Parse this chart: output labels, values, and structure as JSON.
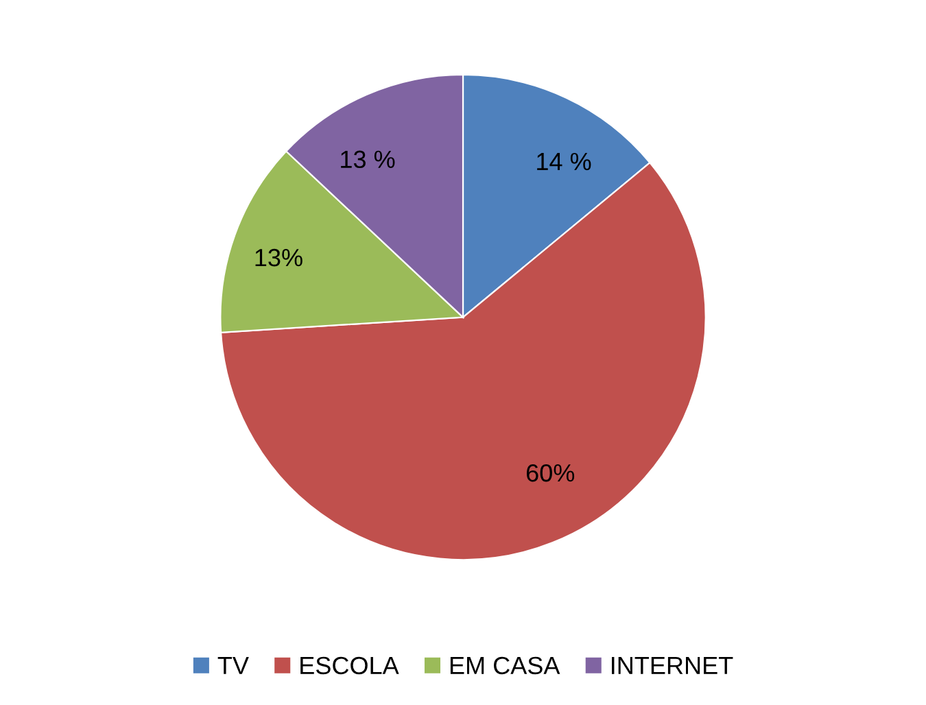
{
  "chart_data": {
    "type": "pie",
    "categories": [
      "TV",
      "ESCOLA",
      "EM CASA",
      "INTERNET"
    ],
    "values": [
      14,
      60,
      13,
      13
    ],
    "value_labels": [
      "14 %",
      "60%",
      "13%",
      "13 %"
    ],
    "colors": [
      "#4f81bd",
      "#c0504d",
      "#9bbb59",
      "#8064a2"
    ],
    "legend": "bottom"
  }
}
